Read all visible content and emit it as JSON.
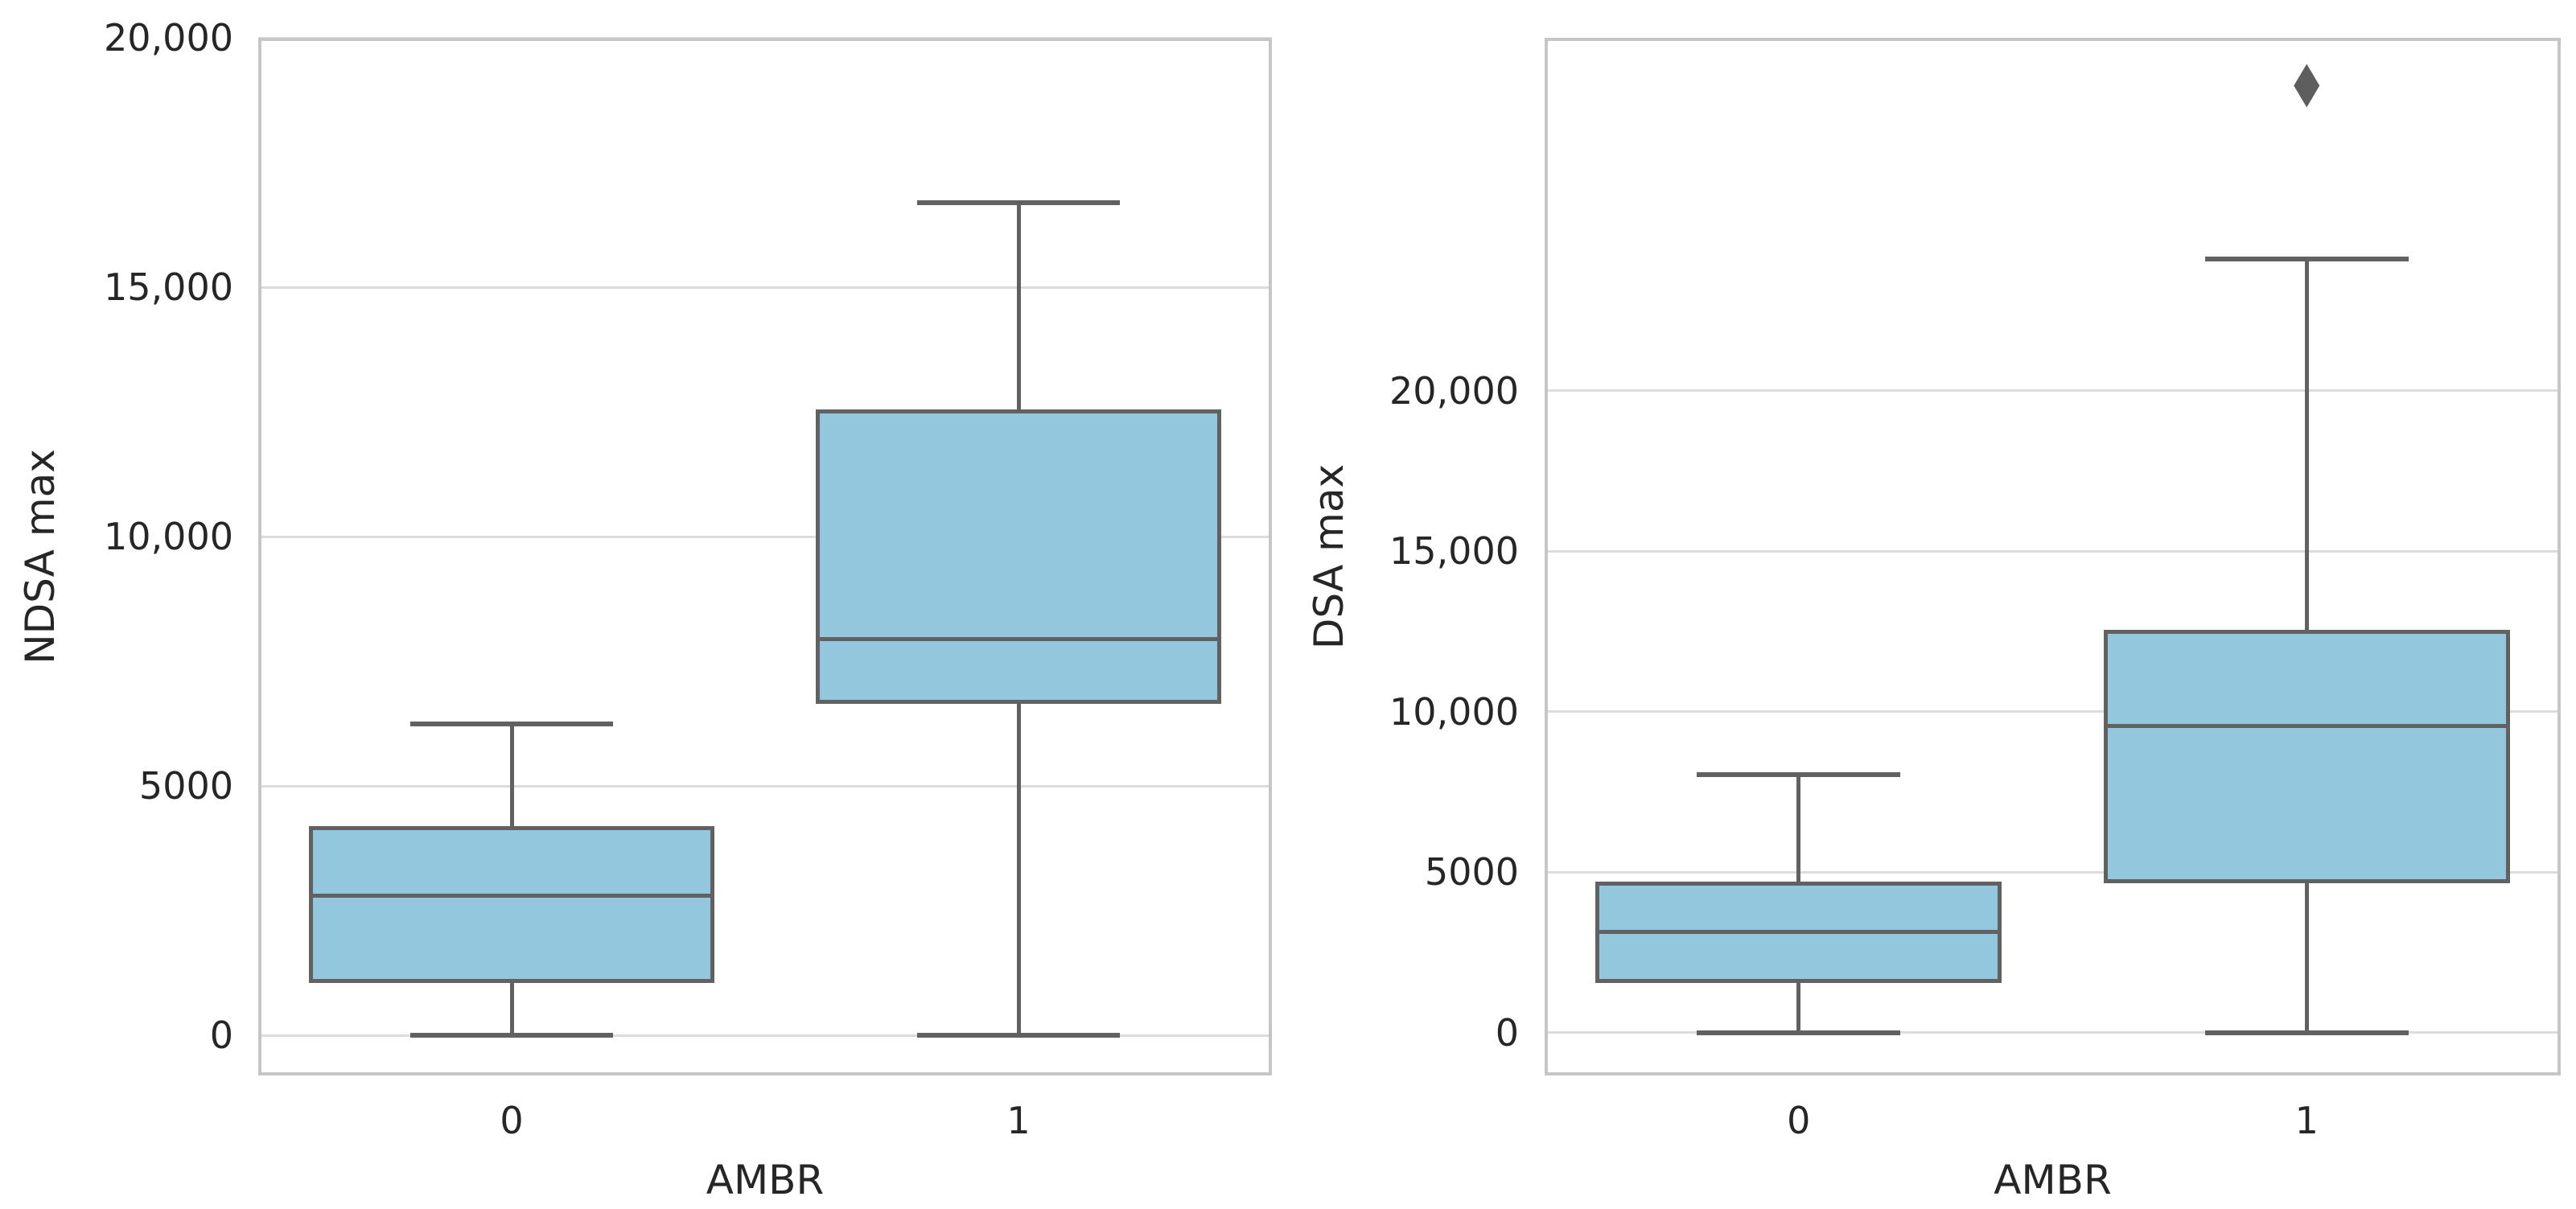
{
  "figure": {
    "background": "#ffffff"
  },
  "colors": {
    "box_fill": "#93c7de",
    "box_edge": "#616161",
    "whisker": "#616161",
    "median": "#616161",
    "cap": "#616161",
    "flier": "#5e5e5e",
    "gridline": "#dcdcdc",
    "spine": "#c6c6c6",
    "tick_text": "#262626",
    "label_text": "#262626"
  },
  "chart_data": [
    {
      "type": "box",
      "title": "",
      "xlabel": "AMBR",
      "ylabel": "NDSA max",
      "categories": [
        "0",
        "1"
      ],
      "grid": "horizontal",
      "legend": "none",
      "ylim": [
        -806,
        20000
      ],
      "yticks": [
        {
          "value": 0,
          "label": "0"
        },
        {
          "value": 5000,
          "label": "5000"
        },
        {
          "value": 10000,
          "label": "10,000"
        },
        {
          "value": 15000,
          "label": "15,000"
        },
        {
          "value": 20000,
          "label": "20,000"
        }
      ],
      "boxes": [
        {
          "category": "0",
          "whisker_low": 0,
          "q1": 1050,
          "median": 2800,
          "q3": 4200,
          "whisker_high": 6250,
          "outliers": []
        },
        {
          "category": "1",
          "whisker_low": 0,
          "q1": 6650,
          "median": 7950,
          "q3": 12550,
          "whisker_high": 16700,
          "outliers": []
        }
      ]
    },
    {
      "type": "box",
      "title": "",
      "xlabel": "AMBR",
      "ylabel": "DSA max",
      "categories": [
        "0",
        "1"
      ],
      "grid": "horizontal",
      "legend": "none",
      "ylim": [
        -1330,
        30990
      ],
      "yticks": [
        {
          "value": 0,
          "label": "0"
        },
        {
          "value": 5000,
          "label": "5000"
        },
        {
          "value": 10000,
          "label": "10,000"
        },
        {
          "value": 15000,
          "label": "15,000"
        },
        {
          "value": 20000,
          "label": "20,000"
        }
      ],
      "boxes": [
        {
          "category": "0",
          "whisker_low": 0,
          "q1": 1550,
          "median": 3150,
          "q3": 4700,
          "whisker_high": 8050,
          "outliers": []
        },
        {
          "category": "1",
          "whisker_low": 0,
          "q1": 4650,
          "median": 9550,
          "q3": 12550,
          "whisker_high": 24100,
          "outliers": [
            29500
          ]
        }
      ]
    }
  ]
}
